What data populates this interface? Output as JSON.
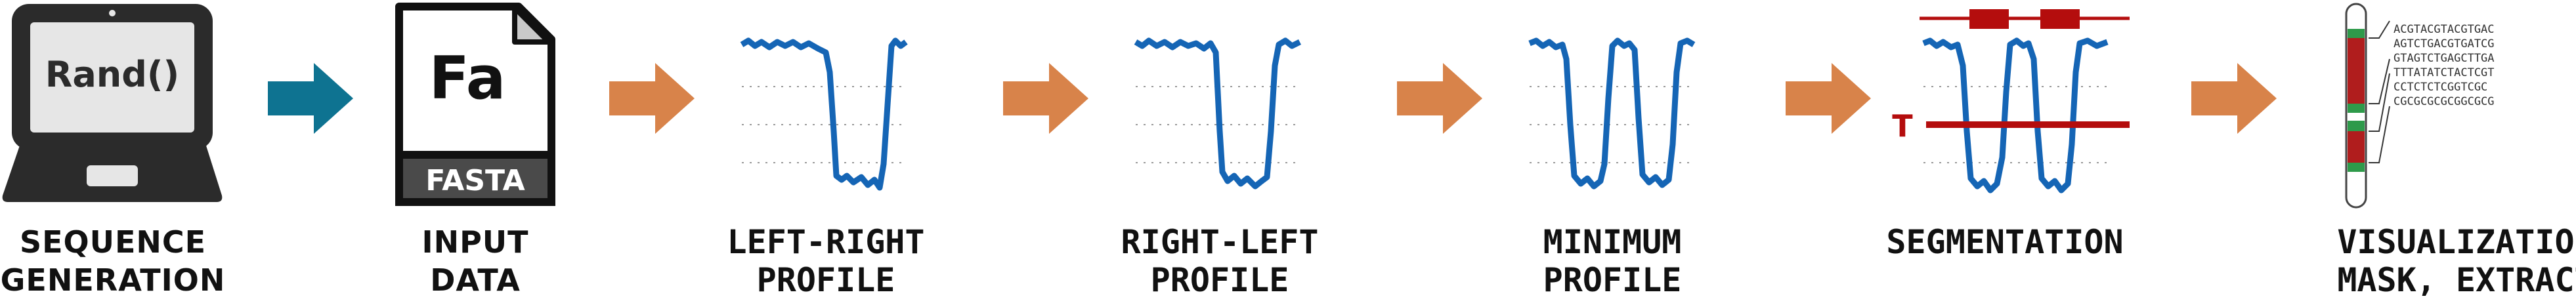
{
  "colors": {
    "laptop": "#2b2b2b",
    "arrow_first": "#0e7391",
    "arrow": "#d8834a",
    "profile": "#1565b5",
    "segment": "#b40d0d",
    "chromosome_band_green": "#2e9a4a",
    "chromosome_band_red": "#b01d1d"
  },
  "steps": [
    {
      "id": "sequence-generation",
      "icon": "laptop-icon",
      "caption": [
        "SEQUENCE",
        "GENERATION"
      ],
      "screen_text": "Rand()"
    },
    {
      "id": "input-data",
      "icon": "fasta-file-icon",
      "caption": [
        "INPUT",
        "DATA"
      ],
      "file_text": "Fa",
      "file_label": "FASTA"
    },
    {
      "id": "left-right-profile",
      "icon": "single-dip-profile-icon",
      "caption": [
        "LEFT-RIGHT",
        "PROFILE"
      ]
    },
    {
      "id": "right-left-profile",
      "icon": "single-dip-profile-icon",
      "caption": [
        "RIGHT-LEFT",
        "PROFILE"
      ]
    },
    {
      "id": "minimum-profile",
      "icon": "double-dip-profile-icon",
      "caption": [
        "MINIMUM",
        "PROFILE"
      ]
    },
    {
      "id": "segmentation",
      "icon": "segmented-profile-icon",
      "caption": [
        "SEGMENTATION"
      ],
      "threshold_label": "T"
    },
    {
      "id": "visualization",
      "icon": "chromosome-icon",
      "caption": [
        "VISUALIZATION",
        "MASK, EXTRACT"
      ],
      "sequence_lines": [
        "ACGTACGTACGTGAC",
        "AGTCTGACGTGATCG",
        "GTAGTCTGAGCTTGA",
        "TTTATATCTACTCGT",
        "CCTCTCTCGGTCGC",
        "CGCGCGCGCGGCGCG"
      ]
    }
  ]
}
